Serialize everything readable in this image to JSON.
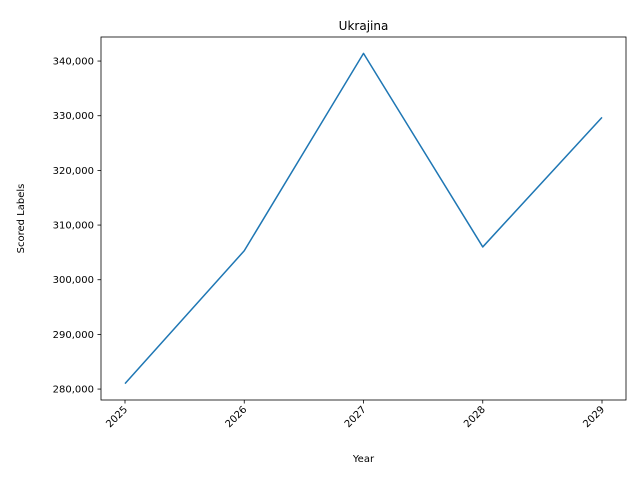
{
  "chart_data": {
    "type": "line",
    "title": "Ukrajina",
    "xlabel": "Year",
    "ylabel": "Scored Labels",
    "x": [
      "2025",
      "2026",
      "2027",
      "2028",
      "2029"
    ],
    "series": [
      {
        "values": [
          281000,
          305300,
          341400,
          306000,
          329700
        ],
        "color": "#1f77b4"
      }
    ],
    "yticks": [
      280000,
      290000,
      300000,
      310000,
      320000,
      330000,
      340000
    ],
    "ytick_labels": [
      "280,000",
      "290,000",
      "300,000",
      "310,000",
      "320,000",
      "330,000",
      "340,000"
    ],
    "ylim": [
      278000,
      344400
    ],
    "grid": false,
    "legend": "none"
  }
}
